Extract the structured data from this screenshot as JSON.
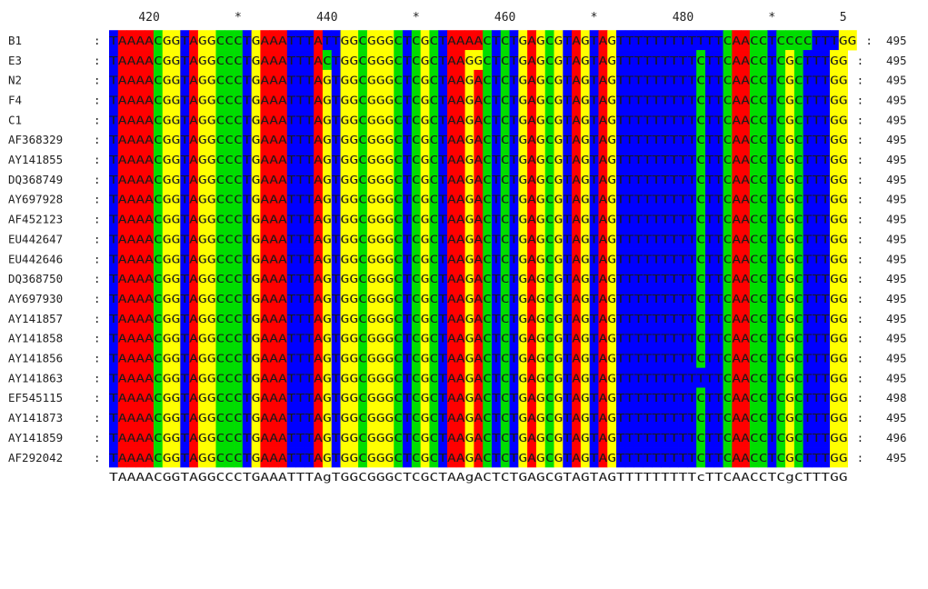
{
  "ruler": [
    {
      "label": "420",
      "col": 4
    },
    {
      "label": "*",
      "col": 14
    },
    {
      "label": "440",
      "col": 24
    },
    {
      "label": "*",
      "col": 34
    },
    {
      "label": "460",
      "col": 44
    },
    {
      "label": "*",
      "col": 54
    },
    {
      "label": "480",
      "col": 64
    },
    {
      "label": "*",
      "col": 74
    },
    {
      "label": "5",
      "col": 82
    }
  ],
  "colors": {
    "A": "#ff0000",
    "C": "#00dd00",
    "G": "#ffff00",
    "T": "#0000ff"
  },
  "consensus": "TAAAACGGTAGGCCCTGAAATTTAgTGGCGGGCTCGCTAAgACTCTGAGCGTAGTAGTTTTTTTTTcTTCAACCTCgCTTTGG",
  "rows": [
    {
      "name": "B1",
      "length": "495",
      "seq": "TAAAACGGTAGGCCCTGAAATTTATTGGCGGGCTCGCTAAAACTCTGAGCGTAGTAGTTTTTTTTTTTTCAACCTCCCCTTTGG"
    },
    {
      "name": "E3",
      "length": "495",
      "seq": "TAAAACGGTAGGCCCTGAAATTTACTGGCGGGCTCGCTAAGGCTCTGAGCGTAGTAGTTTTTTTTTCTTCAACCTCGCTTTGG"
    },
    {
      "name": "N2",
      "length": "495",
      "seq": "TAAAACGGTAGGCCCTGAAATTTAGTGGCGGGCTCGCTAAGACTCTGAGCGTAGTAGTTTTTTTTTCTTCAACCTCGCTTTGG"
    },
    {
      "name": "F4",
      "length": "495",
      "seq": "TAAAACGGTAGGCCCTGAAATTTAGTGGCGGGCTCGCTAAGACTCTGAGCGTAGTAGTTTTTTTTTCTTCAACCTCGCTTTGG"
    },
    {
      "name": "C1",
      "length": "495",
      "seq": "TAAAACGGTAGGCCCTGAAATTTAGTGGCGGGCTCGCTAAGACTCTGAGCGTAGTAGTTTTTTTTTCTTCAACCTCGCTTTGG"
    },
    {
      "name": "AF368329",
      "length": "495",
      "seq": "TAAAACGGTAGGCCCTGAAATTTAGTGGCGGGCTCGCTAAGACTCTGAGCGTAGTAGTTTTTTTTTCTTCAACCTCGCTTTGG"
    },
    {
      "name": "AY141855",
      "length": "495",
      "seq": "TAAAACGGTAGGCCCTGAAATTTAGTGGCGGGCTCGCTAAGACTCTGAGCGTAGTAGTTTTTTTTTCTTCAACCTCGCTTTGG"
    },
    {
      "name": "DQ368749",
      "length": "495",
      "seq": "TAAAACGGTAGGCCCTGAAATTTAGTGGCGGGCTCGCTAAGACTCTGAGCGTAGTAGTTTTTTTTTCTTCAACCTCGCTTTGG"
    },
    {
      "name": "AY697928",
      "length": "495",
      "seq": "TAAAACGGTAGGCCCTGAAATTTAGTGGCGGGCTCGCTAAGACTCTGAGCGTAGTAGTTTTTTTTTCTTCAACCTCGCTTTGG"
    },
    {
      "name": "AF452123",
      "length": "495",
      "seq": "TAAAACGGTAGGCCCTGAAATTTAGTGGCGGGCTCGCTAAGACTCTGAGCGTAGTAGTTTTTTTTTCTTCAACCTCGCTTTGG"
    },
    {
      "name": "EU442647",
      "length": "495",
      "seq": "TAAAACGGTAGGCCCTGAAATTTAGTGGCGGGCTCGCTAAGACTCTGAGCGTAGTAGTTTTTTTTTCTTCAACCTCGCTTTGG"
    },
    {
      "name": "EU442646",
      "length": "495",
      "seq": "TAAAACGGTAGGCCCTGAAATTTAGTGGCGGGCTCGCTAAGACTCTGAGCGTAGTAGTTTTTTTTTCTTCAACCTCGCTTTGG"
    },
    {
      "name": "DQ368750",
      "length": "495",
      "seq": "TAAAACGGTAGGCCCTGAAATTTAGTGGCGGGCTCGCTAAGACTCTGAGCGTAGTAGTTTTTTTTTCTTCAACCTCGCTTTGG"
    },
    {
      "name": "AY697930",
      "length": "495",
      "seq": "TAAAACGGTAGGCCCTGAAATTTAGTGGCGGGCTCGCTAAGACTCTGAGCGTAGTAGTTTTTTTTTCTTCAACCTCGCTTTGG"
    },
    {
      "name": "AY141857",
      "length": "495",
      "seq": "TAAAACGGTAGGCCCTGAAATTTAGTGGCGGGCTCGCTAAGACTCTGAGCGTAGTAGTTTTTTTTTCTTCAACCTCGCTTTGG"
    },
    {
      "name": "AY141858",
      "length": "495",
      "seq": "TAAAACGGTAGGCCCTGAAATTTAGTGGCGGGCTCGCTAAGACTCTGAGCGTAGTAGTTTTTTTTTCTTCAACCTCGCTTTGG"
    },
    {
      "name": "AY141856",
      "length": "495",
      "seq": "TAAAACGGTAGGCCCTGAAATTTAGTGGCGGGCTCGCTAAGACTCTGAGCGTAGTAGTTTTTTTTTCTTCAACCTCGCTTTGG"
    },
    {
      "name": "AY141863",
      "length": "495",
      "seq": "TAAAACGGTAGGCCCTGAAATTTAGTGGCGGGCTCGCTAAGACTCTGAGCGTAGTAGTTTTTTTTTTTTCAACCTCGCTTTGG"
    },
    {
      "name": "EF545115",
      "length": "498",
      "seq": "TAAAACGGTAGGCCCTGAAATTTAGTGGCGGGCTCGCTAAGACTCTGAGCGTAGTAGTTTTTTTTTCTTCAACCTCGCTTTGG"
    },
    {
      "name": "AY141873",
      "length": "495",
      "seq": "TAAAACGGTAGGCCCTGAAATTTAGTGGCGGGCTCGCTAAGACTCTGAGCGTAGTAGTTTTTTTTTCTTCAACCTCGCTTTGG"
    },
    {
      "name": "AY141859",
      "length": "496",
      "seq": "TAAAACGGTAGGCCCTGAAATTTAGTGGCGGGCTCGCTAAGACTCTGAGCGTAGTAGTTTTTTTTTCTTCAACCTCGCTTTGG"
    },
    {
      "name": "AF292042",
      "length": "495",
      "seq": "TAAAACGGTAGGCCCTGAAATTTAGTGGCGGGCTCGCTAAGACTCTGAGCGTAGTAGTTTTTTTTTCTTCAACCTCGCTTTGG"
    }
  ]
}
